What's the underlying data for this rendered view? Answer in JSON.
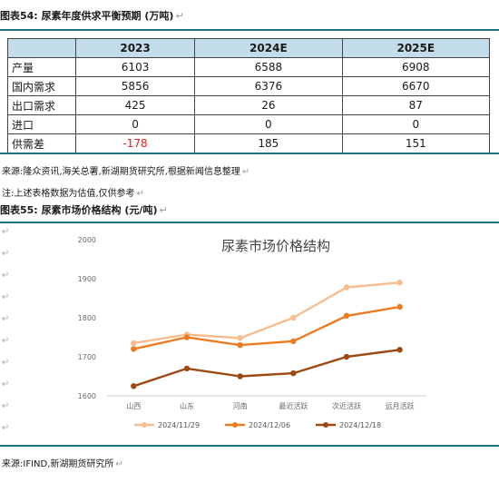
{
  "table_caption": {
    "label": "图表54:",
    "title": "尿素年度供求平衡预期",
    "unit": "(万吨)"
  },
  "table": {
    "columns": [
      "",
      "2023",
      "2024E",
      "2025E"
    ],
    "rows": [
      {
        "label": "产量",
        "values": [
          "6103",
          "6588",
          "6908"
        ]
      },
      {
        "label": "国内需求",
        "values": [
          "5856",
          "6376",
          "6670"
        ]
      },
      {
        "label": "出口需求",
        "values": [
          "425",
          "26",
          "87"
        ]
      },
      {
        "label": "进口",
        "values": [
          "0",
          "0",
          "0"
        ]
      },
      {
        "label": "供需差",
        "values": [
          "-178",
          "185",
          "151"
        ]
      }
    ]
  },
  "source_1": "来源:隆众资讯,海关总署,新湖期货研究所,根据新闻信息整理",
  "note": "注:上述表格数据为估值,仅供参考",
  "chart_caption": {
    "label": "图表55:",
    "title": "尿素市场价格结构",
    "unit": "(元/吨)"
  },
  "chart_data": {
    "type": "line",
    "title": "尿素市场价格结构",
    "categories": [
      "山西",
      "山东",
      "河南",
      "最近活跃",
      "次近活跃",
      "远月活跃"
    ],
    "ylim": [
      1600,
      2000
    ],
    "yticks": [
      "1600",
      "1700",
      "1800",
      "1900",
      "2000"
    ],
    "grid": false,
    "legend": "bottom",
    "series": [
      {
        "name": "2024/11/29",
        "color": "#f7bd8f",
        "values": [
          1735,
          1757,
          1748,
          1800,
          1878,
          1890
        ]
      },
      {
        "name": "2024/12/06",
        "color": "#ec7a1f",
        "values": [
          1720,
          1750,
          1730,
          1740,
          1805,
          1828
        ]
      },
      {
        "name": "2024/12/18",
        "color": "#9c4a12",
        "values": [
          1625,
          1670,
          1650,
          1658,
          1700,
          1718
        ]
      }
    ]
  },
  "source_2": "来源:IFIND,新湖期货研究所",
  "return_mark": "↵"
}
